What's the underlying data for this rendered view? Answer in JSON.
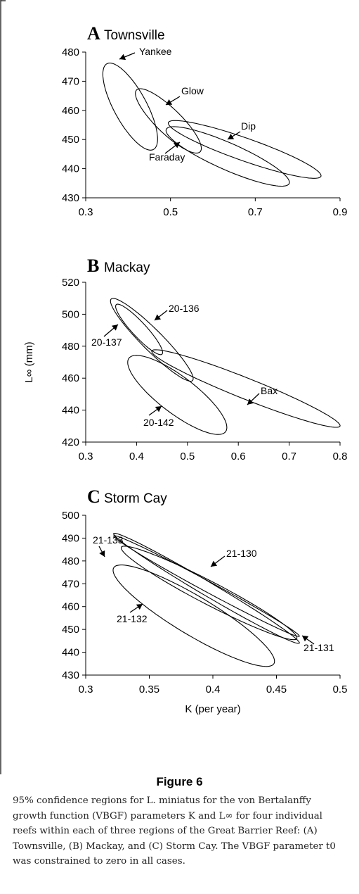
{
  "figure_label": "Figure 6",
  "caption": "95% confidence regions for L. miniatus for the von Bertalanffy growth function (VBGF) parameters K and L∞ for four individual reefs within each of three regions of the Great Barrier Reef: (A) Townsville, (B) Mackay, and (C) Storm Cay. The VBGF parameter t0 was constrained to zero in all cases.",
  "chart_data": [
    {
      "type": "scatter",
      "panel_letter": "A",
      "title": "Townsville",
      "xlabel": "",
      "ylabel": "",
      "xlim": [
        0.3,
        0.9
      ],
      "ylim": [
        430,
        480
      ],
      "xticks": [
        "0.3",
        "0.5",
        "0.7",
        "0.9"
      ],
      "yticks": [
        "430",
        "440",
        "450",
        "460",
        "470",
        "480"
      ],
      "grid": false,
      "series": [
        {
          "name": "Yankee",
          "center_K": 0.405,
          "center_Linf": 461.3,
          "tip_K": 0.35,
          "tip_Linf": 476.0,
          "half_width": 5.6
        },
        {
          "name": "Glow",
          "center_K": 0.495,
          "center_Linf": 456.4,
          "tip_K": 0.42,
          "tip_Linf": 467.0,
          "half_width": 4.3
        },
        {
          "name": "Dip",
          "center_K": 0.675,
          "center_Linf": 446.6,
          "tip_K": 0.495,
          "tip_Linf": 455.8,
          "half_width": 3.9
        },
        {
          "name": "Faraday",
          "center_K": 0.635,
          "center_Linf": 444.2,
          "tip_K": 0.49,
          "tip_Linf": 453.5,
          "half_width": 4.6
        }
      ]
    },
    {
      "type": "scatter",
      "panel_letter": "B",
      "title": "Mackay",
      "xlabel": "",
      "ylabel": "L∞ (mm)",
      "xlim": [
        0.3,
        0.8
      ],
      "ylim": [
        420,
        520
      ],
      "xticks": [
        "0.3",
        "0.4",
        "0.5",
        "0.6",
        "0.7",
        "0.8"
      ],
      "yticks": [
        "420",
        "440",
        "460",
        "480",
        "500",
        "520"
      ],
      "grid": false,
      "series": [
        {
          "name": "20-136",
          "center_K": 0.405,
          "center_Linf": 490.5,
          "tip_K": 0.36,
          "tip_Linf": 506.0,
          "half_width": 4.5
        },
        {
          "name": "20-137",
          "center_K": 0.43,
          "center_Linf": 484.0,
          "tip_K": 0.35,
          "tip_Linf": 509.5,
          "half_width": 6.5
        },
        {
          "name": "Bax",
          "center_K": 0.615,
          "center_Linf": 453.5,
          "tip_K": 0.43,
          "tip_Linf": 477.0,
          "half_width": 6.5
        },
        {
          "name": "20-142",
          "center_K": 0.48,
          "center_Linf": 449.5,
          "tip_K": 0.385,
          "tip_Linf": 472.5,
          "half_width": 11.5
        }
      ]
    },
    {
      "type": "scatter",
      "panel_letter": "C",
      "title": "Storm Cay",
      "xlabel": "K (per year)",
      "ylabel": "",
      "xlim": [
        0.3,
        0.5
      ],
      "ylim": [
        430,
        500
      ],
      "xticks": [
        "0.3",
        "0.35",
        "0.4",
        "0.45",
        "0.5"
      ],
      "yticks": [
        "430",
        "440",
        "450",
        "460",
        "470",
        "480",
        "490",
        "500"
      ],
      "grid": false,
      "series": [
        {
          "name": "21-133",
          "center_K": 0.395,
          "center_Linf": 469.0,
          "tip_K": 0.322,
          "tip_Linf": 491.0,
          "half_width": 2.3
        },
        {
          "name": "21-130",
          "center_K": 0.395,
          "center_Linf": 468.0,
          "tip_K": 0.322,
          "tip_Linf": 492.0,
          "half_width": 3.0
        },
        {
          "name": "21-131",
          "center_K": 0.397,
          "center_Linf": 466.0,
          "tip_K": 0.328,
          "tip_Linf": 486.0,
          "half_width": 5.0
        },
        {
          "name": "21-132",
          "center_K": 0.385,
          "center_Linf": 456.0,
          "tip_K": 0.322,
          "tip_Linf": 477.0,
          "half_width": 8.5
        }
      ]
    }
  ]
}
